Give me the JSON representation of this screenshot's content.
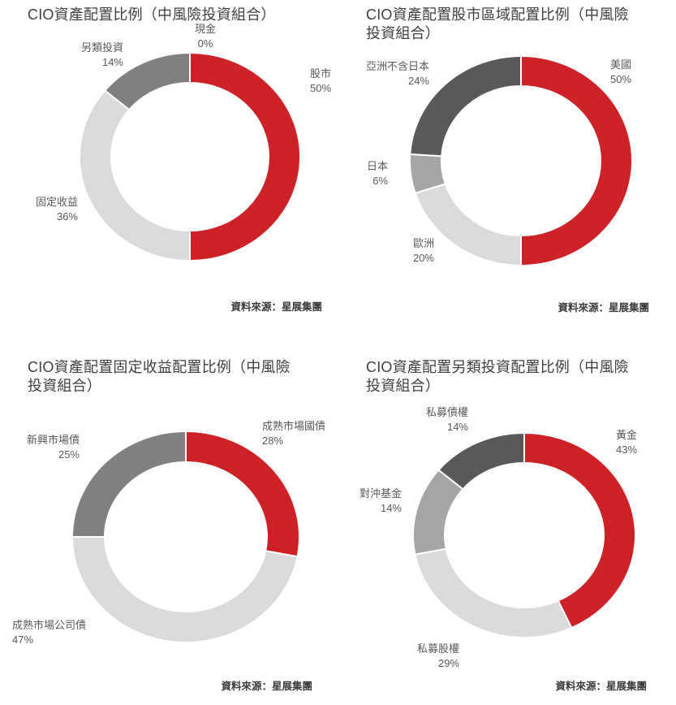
{
  "page": {
    "background": "#ffffff"
  },
  "palette": {
    "red": "#CE2127",
    "light_gray": "#DBDBDB",
    "medium_gray": "#A5A5A5",
    "gray": "#808080",
    "dark_gray": "#595959",
    "title_text": "#3F3F3F",
    "label_text": "#595959"
  },
  "chart_data": [
    {
      "type": "donut",
      "title": "CIO資產配置比例（中風險投資組合）",
      "source": "資料來源：星展集團",
      "unit": "%",
      "start_angle": 0,
      "direction": "clockwise",
      "label_position": "outside",
      "legend": "none",
      "categories": [
        "股市",
        "固定收益",
        "另類投資",
        "現金"
      ],
      "values": [
        50,
        36,
        14,
        0
      ],
      "colors": [
        "#CE2127",
        "#DBDBDB",
        "#808080",
        "#A5A5A5"
      ],
      "slices": [
        {
          "label": "股市",
          "pct": "50%"
        },
        {
          "label": "固定收益",
          "pct": "36%"
        },
        {
          "label": "另類投資",
          "pct": "14%"
        },
        {
          "label": "現金",
          "pct": "0%"
        }
      ]
    },
    {
      "type": "donut",
      "title": "CIO資產配置股市區域配置比例（中風險投資組合）",
      "source": "資料來源：星展集團",
      "unit": "%",
      "start_angle": 0,
      "direction": "clockwise",
      "label_position": "outside",
      "legend": "none",
      "categories": [
        "美國",
        "歐洲",
        "日本",
        "亞洲不含日本"
      ],
      "values": [
        50,
        20,
        6,
        24
      ],
      "colors": [
        "#CE2127",
        "#DBDBDB",
        "#A5A5A5",
        "#595959"
      ],
      "slices": [
        {
          "label": "美國",
          "pct": "50%"
        },
        {
          "label": "歐洲",
          "pct": "20%"
        },
        {
          "label": "日本",
          "pct": "6%"
        },
        {
          "label": "亞洲不含日本",
          "pct": "24%"
        }
      ]
    },
    {
      "type": "donut",
      "title": "CIO資產配置固定收益配置比例（中風險投資組合）",
      "source": "資料來源：星展集團",
      "unit": "%",
      "start_angle": 0,
      "direction": "clockwise",
      "label_position": "outside",
      "legend": "none",
      "categories": [
        "成熟市場國債",
        "成熟市場公司債",
        "新興市場債"
      ],
      "values": [
        28,
        47,
        25
      ],
      "colors": [
        "#CE2127",
        "#DBDBDB",
        "#808080"
      ],
      "slices": [
        {
          "label": "成熟市場國債",
          "pct": "28%"
        },
        {
          "label": "成熟市場公司債",
          "pct": "47%"
        },
        {
          "label": "新興市場債",
          "pct": "25%"
        }
      ]
    },
    {
      "type": "donut",
      "title": "CIO資產配置另類投資配置比例（中風險投資組合）",
      "source": "資料來源：星展集團",
      "unit": "%",
      "start_angle": 0,
      "direction": "clockwise",
      "label_position": "outside",
      "legend": "none",
      "categories": [
        "黃金",
        "私募股權",
        "對沖基金",
        "私募債權"
      ],
      "values": [
        43,
        29,
        14,
        14
      ],
      "colors": [
        "#CE2127",
        "#DBDBDB",
        "#A5A5A5",
        "#595959"
      ],
      "slices": [
        {
          "label": "黃金",
          "pct": "43%"
        },
        {
          "label": "私募股權",
          "pct": "29%"
        },
        {
          "label": "對沖基金",
          "pct": "14%"
        },
        {
          "label": "私募債權",
          "pct": "14%"
        }
      ]
    }
  ]
}
